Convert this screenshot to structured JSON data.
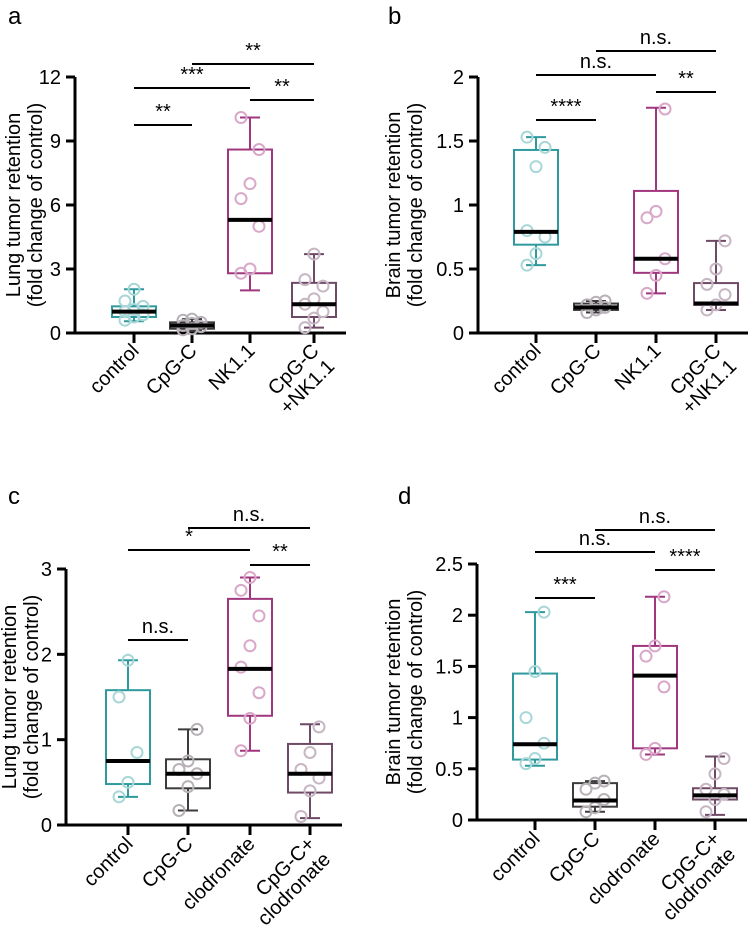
{
  "colors": {
    "teal": "#2f9a9e",
    "teal_light": "#a9d7d8",
    "purple": "#a0377e",
    "purple_light": "#d9a8c9",
    "dark": "#3c3c3c",
    "dark_light": "#b8b2b8",
    "plum": "#6e4a66",
    "plum_light": "#c7b6c3",
    "axis": "#000000"
  },
  "chart_data": [
    {
      "panel_label": "a",
      "type": "box",
      "ylabel_line1": "Lung tumor retention",
      "ylabel_line2": "(fold change of control)",
      "ylim": [
        0,
        12
      ],
      "yticks": [
        0,
        3,
        6,
        9,
        12
      ],
      "ytick_labels": [
        "0",
        "3",
        "6",
        "9",
        "12"
      ],
      "categories": [
        {
          "label_lines": [
            "control"
          ],
          "color": "teal"
        },
        {
          "label_lines": [
            "CpG-C"
          ],
          "color": "dark"
        },
        {
          "label_lines": [
            "NK1.1"
          ],
          "color": "purple"
        },
        {
          "label_lines": [
            "CpG-C",
            "+NK1.1"
          ],
          "color": "plum"
        }
      ],
      "boxes": [
        {
          "min": 0.55,
          "q1": 0.75,
          "median": 1.0,
          "q3": 1.25,
          "max": 2.05,
          "points": [
            0.6,
            0.75,
            0.85,
            1.0,
            1.1,
            1.25,
            1.5,
            2.05
          ]
        },
        {
          "min": 0.1,
          "q1": 0.2,
          "median": 0.35,
          "q3": 0.5,
          "max": 0.65,
          "points": [
            0.15,
            0.2,
            0.3,
            0.35,
            0.45,
            0.5,
            0.6,
            0.65
          ]
        },
        {
          "min": 2.0,
          "q1": 2.8,
          "median": 5.3,
          "q3": 8.6,
          "max": 10.1,
          "points": [
            2.8,
            3.0,
            5.0,
            6.3,
            7.0,
            8.6,
            10.1
          ]
        },
        {
          "min": 0.25,
          "q1": 0.75,
          "median": 1.35,
          "q3": 2.35,
          "max": 3.7,
          "points": [
            0.25,
            0.7,
            1.0,
            1.35,
            1.6,
            2.2,
            2.5,
            3.7
          ]
        }
      ],
      "significance": [
        {
          "from": 0,
          "to": 1,
          "label": "**",
          "level": 0
        },
        {
          "from": 0,
          "to": 2,
          "label": "***",
          "level": 1
        },
        {
          "from": 2,
          "to": 3,
          "label": "**",
          "level": 0.5
        },
        {
          "from": 1,
          "to": 3,
          "label": "**",
          "level": 2
        }
      ]
    },
    {
      "panel_label": "b",
      "type": "box",
      "ylabel_line1": "Brain tumor retention",
      "ylabel_line2": "(fold change of control)",
      "ylim": [
        0,
        2
      ],
      "yticks": [
        0,
        0.5,
        1,
        1.5,
        2
      ],
      "ytick_labels": [
        "0",
        "0.5",
        "1",
        "1.5",
        "2"
      ],
      "categories": [
        {
          "label_lines": [
            "control"
          ],
          "color": "teal"
        },
        {
          "label_lines": [
            "CpG-C"
          ],
          "color": "dark"
        },
        {
          "label_lines": [
            "NK1.1"
          ],
          "color": "purple"
        },
        {
          "label_lines": [
            "CpG-C",
            "+NK1.1"
          ],
          "color": "plum"
        }
      ],
      "boxes": [
        {
          "min": 0.53,
          "q1": 0.69,
          "median": 0.79,
          "q3": 1.43,
          "max": 1.53,
          "points": [
            0.53,
            0.62,
            0.75,
            0.8,
            1.3,
            1.45,
            1.53
          ]
        },
        {
          "min": 0.16,
          "q1": 0.18,
          "median": 0.2,
          "q3": 0.23,
          "max": 0.25,
          "points": [
            0.16,
            0.18,
            0.2,
            0.22,
            0.24,
            0.25
          ]
        },
        {
          "min": 0.31,
          "q1": 0.47,
          "median": 0.58,
          "q3": 1.11,
          "max": 1.76,
          "points": [
            0.31,
            0.45,
            0.58,
            0.9,
            0.95,
            1.75
          ]
        },
        {
          "min": 0.18,
          "q1": 0.22,
          "median": 0.23,
          "q3": 0.39,
          "max": 0.72,
          "points": [
            0.18,
            0.22,
            0.3,
            0.38,
            0.5,
            0.72
          ]
        }
      ],
      "significance": [
        {
          "from": 0,
          "to": 1,
          "label": "****",
          "level": 0
        },
        {
          "from": 0,
          "to": 2,
          "label": "n.s.",
          "level": 1
        },
        {
          "from": 2,
          "to": 3,
          "label": "**",
          "level": 0.5
        },
        {
          "from": 1,
          "to": 3,
          "label": "n.s.",
          "level": 2
        }
      ]
    },
    {
      "panel_label": "c",
      "type": "box",
      "ylabel_line1": "Lung tumor retention",
      "ylabel_line2": "(fold change of control)",
      "ylim": [
        0,
        3
      ],
      "yticks": [
        0,
        1,
        2,
        3
      ],
      "ytick_labels": [
        "0",
        "1",
        "2",
        "3"
      ],
      "categories": [
        {
          "label_lines": [
            "control"
          ],
          "color": "teal"
        },
        {
          "label_lines": [
            "CpG-C"
          ],
          "color": "dark"
        },
        {
          "label_lines": [
            "clodronate"
          ],
          "color": "purple"
        },
        {
          "label_lines": [
            "CpG-C+",
            "clodronate"
          ],
          "color": "plum"
        }
      ],
      "boxes": [
        {
          "min": 0.33,
          "q1": 0.48,
          "median": 0.75,
          "q3": 1.58,
          "max": 1.93,
          "points": [
            0.33,
            0.5,
            0.85,
            1.5,
            1.93
          ]
        },
        {
          "min": 0.17,
          "q1": 0.43,
          "median": 0.6,
          "q3": 0.77,
          "max": 1.12,
          "points": [
            0.17,
            0.45,
            0.6,
            0.65,
            0.75,
            1.12
          ]
        },
        {
          "min": 0.87,
          "q1": 1.28,
          "median": 1.83,
          "q3": 2.65,
          "max": 2.9,
          "points": [
            0.87,
            1.25,
            1.55,
            1.85,
            2.1,
            2.45,
            2.75,
            2.9
          ]
        },
        {
          "min": 0.08,
          "q1": 0.38,
          "median": 0.6,
          "q3": 0.95,
          "max": 1.18,
          "points": [
            0.1,
            0.4,
            0.55,
            0.65,
            0.85,
            1.15
          ]
        }
      ],
      "significance": [
        {
          "from": 0,
          "to": 1,
          "label": "n.s.",
          "level": -1.8
        },
        {
          "from": 0,
          "to": 2,
          "label": "*",
          "level": 1
        },
        {
          "from": 2,
          "to": 3,
          "label": "**",
          "level": 0.5
        },
        {
          "from": 1,
          "to": 3,
          "label": "n.s.",
          "level": 2
        }
      ]
    },
    {
      "panel_label": "d",
      "type": "box",
      "ylabel_line1": "Brain tumor retention",
      "ylabel_line2": "(fold change of control)",
      "ylim": [
        0,
        2.5
      ],
      "yticks": [
        0,
        0.5,
        1,
        1.5,
        2,
        2.5
      ],
      "ytick_labels": [
        "0",
        "0.5",
        "1",
        "1.5",
        "2",
        "2.5"
      ],
      "categories": [
        {
          "label_lines": [
            "control"
          ],
          "color": "teal"
        },
        {
          "label_lines": [
            "CpG-C"
          ],
          "color": "dark"
        },
        {
          "label_lines": [
            "clodronate"
          ],
          "color": "purple"
        },
        {
          "label_lines": [
            "CpG-C+",
            "clodronate"
          ],
          "color": "plum"
        }
      ],
      "boxes": [
        {
          "min": 0.53,
          "q1": 0.59,
          "median": 0.74,
          "q3": 1.43,
          "max": 2.03,
          "points": [
            0.55,
            0.6,
            0.75,
            1.0,
            1.45,
            2.03
          ]
        },
        {
          "min": 0.08,
          "q1": 0.13,
          "median": 0.19,
          "q3": 0.36,
          "max": 0.38,
          "points": [
            0.08,
            0.12,
            0.2,
            0.3,
            0.36,
            0.38
          ]
        },
        {
          "min": 0.64,
          "q1": 0.7,
          "median": 1.41,
          "q3": 1.7,
          "max": 2.18,
          "points": [
            0.64,
            0.7,
            1.3,
            1.6,
            1.7,
            2.18
          ]
        },
        {
          "min": 0.05,
          "q1": 0.2,
          "median": 0.24,
          "q3": 0.31,
          "max": 0.62,
          "points": [
            0.08,
            0.2,
            0.25,
            0.3,
            0.45,
            0.6
          ]
        }
      ],
      "significance": [
        {
          "from": 0,
          "to": 1,
          "label": "***",
          "level": 0
        },
        {
          "from": 0,
          "to": 2,
          "label": "n.s.",
          "level": 1
        },
        {
          "from": 2,
          "to": 3,
          "label": "****",
          "level": 0.5
        },
        {
          "from": 1,
          "to": 3,
          "label": "n.s.",
          "level": 2
        }
      ]
    }
  ]
}
